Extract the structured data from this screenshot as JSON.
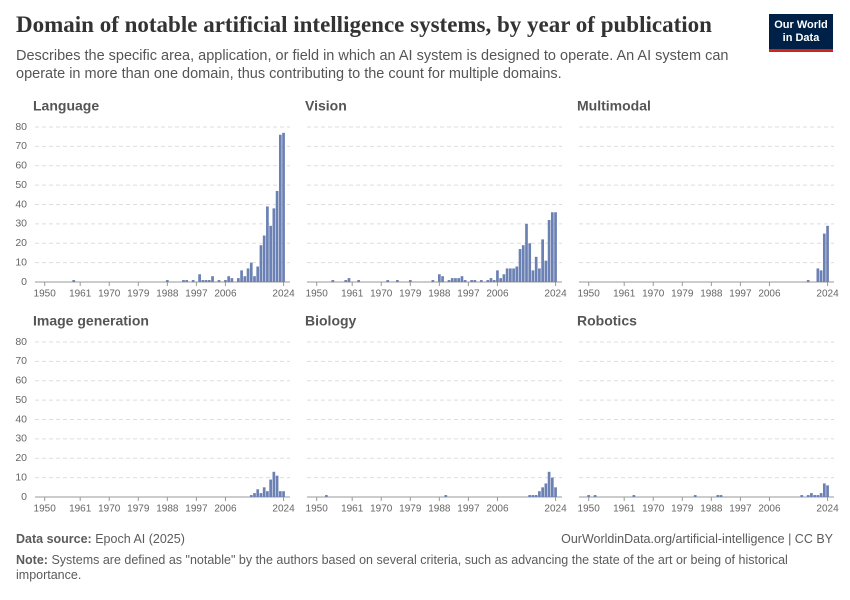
{
  "header": {
    "title": "Domain of notable artificial intelligence systems, by year of publication",
    "subtitle": "Describes the specific area, application, or field in which an AI system is designed to operate. An AI system can operate in more than one domain, thus contributing to the count for multiple domains.",
    "logo": [
      "Our World",
      "in Data"
    ]
  },
  "footer": {
    "source_label": "Data source:",
    "source": "Epoch AI (2025)",
    "url": "OurWorldinData.org/artificial-intelligence | CC BY",
    "note_label": "Note:",
    "note": "Systems are defined as \"notable\" by the authors based on several criteria, such as advancing the state of the art or being of historical importance."
  },
  "chart_data": [
    {
      "type": "bar",
      "title": "Language",
      "color": "#6b80b3",
      "grid": true,
      "x": [
        1959,
        1988,
        1993,
        1994,
        1996,
        1998,
        1999,
        2000,
        2001,
        2002,
        2004,
        2006,
        2007,
        2008,
        2010,
        2011,
        2012,
        2013,
        2014,
        2015,
        2016,
        2017,
        2018,
        2019,
        2020,
        2021,
        2022,
        2023,
        2024
      ],
      "values": [
        1,
        1,
        1,
        1,
        1,
        4,
        1,
        1,
        1,
        3,
        1,
        1,
        3,
        2,
        2,
        6,
        3,
        7,
        10,
        3,
        8,
        19,
        24,
        39,
        29,
        38,
        47,
        76,
        77
      ],
      "xlim": [
        1947,
        2026
      ],
      "ylim": [
        0,
        80
      ],
      "xticks": [
        1950,
        1961,
        1970,
        1979,
        1988,
        1997,
        2006,
        2024
      ],
      "yticks": [
        0,
        10,
        20,
        30,
        40,
        50,
        60,
        70,
        80
      ]
    },
    {
      "type": "bar",
      "title": "Vision",
      "color": "#6b80b3",
      "grid": true,
      "x": [
        1955,
        1959,
        1960,
        1963,
        1972,
        1975,
        1979,
        1986,
        1988,
        1989,
        1991,
        1992,
        1993,
        1994,
        1995,
        1996,
        1998,
        1999,
        2001,
        2003,
        2004,
        2005,
        2006,
        2007,
        2008,
        2009,
        2010,
        2011,
        2012,
        2013,
        2014,
        2015,
        2016,
        2017,
        2018,
        2019,
        2020,
        2021,
        2022,
        2023,
        2024
      ],
      "values": [
        1,
        1,
        2,
        1,
        1,
        1,
        1,
        1,
        4,
        3,
        1,
        2,
        2,
        2,
        3,
        1,
        1,
        1,
        1,
        1,
        2,
        1,
        6,
        2,
        4,
        7,
        7,
        7,
        8,
        17,
        19,
        30,
        20,
        6,
        13,
        7,
        22,
        11,
        32,
        36,
        36
      ],
      "xlim": [
        1947,
        2026
      ],
      "ylim": [
        0,
        80
      ],
      "xticks": [
        1950,
        1961,
        1970,
        1979,
        1988,
        1997,
        2006,
        2024
      ],
      "yticks": [
        0,
        10,
        20,
        30,
        40,
        50,
        60,
        70,
        80
      ]
    },
    {
      "type": "bar",
      "title": "Multimodal",
      "color": "#6b80b3",
      "grid": true,
      "x": [
        2018,
        2021,
        2022,
        2023,
        2024
      ],
      "values": [
        1,
        7,
        6,
        25,
        29
      ],
      "xlim": [
        1947,
        2026
      ],
      "ylim": [
        0,
        80
      ],
      "xticks": [
        1950,
        1961,
        1970,
        1979,
        1988,
        1997,
        2006,
        2024
      ],
      "yticks": [
        0,
        10,
        20,
        30,
        40,
        50,
        60,
        70,
        80
      ]
    },
    {
      "type": "bar",
      "title": "Image generation",
      "color": "#6b80b3",
      "grid": true,
      "x": [
        2014,
        2015,
        2016,
        2017,
        2018,
        2019,
        2020,
        2021,
        2022,
        2023,
        2024
      ],
      "values": [
        1,
        2,
        4,
        2,
        5,
        3,
        9,
        13,
        11,
        3,
        3
      ],
      "xlim": [
        1947,
        2026
      ],
      "ylim": [
        0,
        80
      ],
      "xticks": [
        1950,
        1961,
        1970,
        1979,
        1988,
        1997,
        2006,
        2024
      ],
      "yticks": [
        0,
        10,
        20,
        30,
        40,
        50,
        60,
        70,
        80
      ]
    },
    {
      "type": "bar",
      "title": "Biology",
      "color": "#6b80b3",
      "grid": true,
      "x": [
        1953,
        1990,
        2016,
        2017,
        2018,
        2019,
        2020,
        2021,
        2022,
        2023,
        2024
      ],
      "values": [
        1,
        1,
        1,
        1,
        1,
        3,
        5,
        7,
        13,
        10,
        5
      ],
      "xlim": [
        1947,
        2026
      ],
      "ylim": [
        0,
        80
      ],
      "xticks": [
        1950,
        1961,
        1970,
        1979,
        1988,
        1997,
        2006,
        2024
      ],
      "yticks": [
        0,
        10,
        20,
        30,
        40,
        50,
        60,
        70,
        80
      ]
    },
    {
      "type": "bar",
      "title": "Robotics",
      "color": "#6b80b3",
      "grid": true,
      "x": [
        1950,
        1952,
        1964,
        1983,
        1990,
        1991,
        2016,
        2018,
        2019,
        2020,
        2021,
        2022,
        2023,
        2024
      ],
      "values": [
        1,
        1,
        1,
        1,
        1,
        1,
        1,
        1,
        2,
        1,
        1,
        2,
        7,
        6
      ],
      "xlim": [
        1947,
        2026
      ],
      "ylim": [
        0,
        80
      ],
      "xticks": [
        1950,
        1961,
        1970,
        1979,
        1988,
        1997,
        2006,
        2024
      ],
      "yticks": [
        0,
        10,
        20,
        30,
        40,
        50,
        60,
        70,
        80
      ]
    }
  ]
}
